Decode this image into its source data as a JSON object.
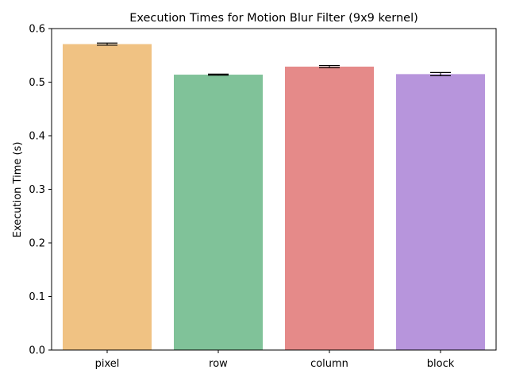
{
  "chart_data": {
    "type": "bar",
    "title": "Execution Times for Motion Blur Filter (9x9 kernel)",
    "xlabel": "",
    "ylabel": "Execution Time (s)",
    "categories": [
      "pixel",
      "row",
      "column",
      "block"
    ],
    "values": [
      0.571,
      0.514,
      0.529,
      0.515
    ],
    "errors": [
      0.002,
      0.001,
      0.002,
      0.003
    ],
    "colors": [
      "#f0c283",
      "#80c299",
      "#e58a89",
      "#b795dc"
    ],
    "ylim": [
      0,
      0.6
    ],
    "yticks": [
      0.0,
      0.1,
      0.2,
      0.3,
      0.4,
      0.5,
      0.6
    ],
    "ytick_labels": [
      "0.0",
      "0.1",
      "0.2",
      "0.3",
      "0.4",
      "0.5",
      "0.6"
    ],
    "grid": false,
    "legend": "none"
  }
}
